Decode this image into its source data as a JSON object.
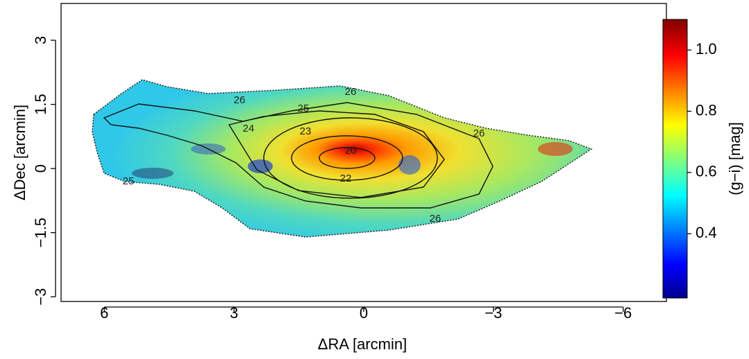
{
  "chart_data": {
    "type": "image",
    "xlabel": "ΔRA [arcmin]",
    "ylabel": "ΔDec [arcmin]",
    "xlim": [
      7,
      -7
    ],
    "ylim": [
      -3.11,
      3.86
    ],
    "xticks": [
      6,
      3,
      0,
      {
        "value": -3,
        "label": "−3"
      },
      {
        "value": -6,
        "label": "−6"
      }
    ],
    "yticks": [
      {
        "value": -3,
        "label": "−3"
      },
      {
        "value": -1.5,
        "label": "−1.5"
      },
      0,
      1.5,
      3
    ],
    "colorbar": {
      "label": "(g−i) [mag]",
      "lim": [
        0.19,
        1.1
      ],
      "ticks": [
        0.4,
        0.6,
        0.8,
        {
          "value": 1,
          "label": "1.0"
        }
      ]
    },
    "contour_labels": [
      "26",
      "26",
      "25",
      "24",
      "23",
      "20",
      "22",
      "26",
      "26",
      "25"
    ]
  }
}
